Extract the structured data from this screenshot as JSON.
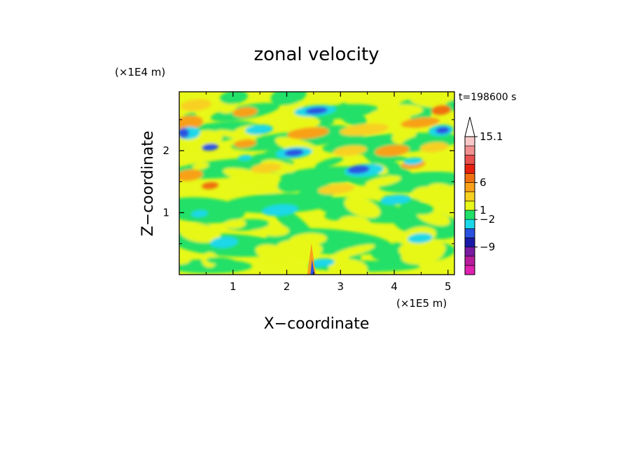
{
  "chart_data": {
    "type": "heatmap",
    "title": "zonal velocity",
    "xlabel": "X−coordinate",
    "ylabel": "Z−coordinate",
    "x_scale_label": "(×1E5 m)",
    "y_scale_label": "(×1E4 m)",
    "time_label": "t=198600 s",
    "xlim": [
      0,
      5.12
    ],
    "ylim": [
      0,
      2.95
    ],
    "xticks": [
      1,
      2,
      3,
      4,
      5
    ],
    "yticks": [
      1,
      2
    ],
    "colorbar": {
      "tick_labels": [
        "15.1",
        "6",
        "1",
        "−2",
        "−9"
      ],
      "levels": [
        {
          "color": "#e020b0"
        },
        {
          "color": "#b81c9c"
        },
        {
          "color": "#7a1aa0"
        },
        {
          "color": "#1a1aa8"
        },
        {
          "color": "#2a52e0"
        },
        {
          "color": "#1ad8e8"
        },
        {
          "color": "#20e068"
        },
        {
          "color": "#e8f818"
        },
        {
          "color": "#f8d020"
        },
        {
          "color": "#f8a018"
        },
        {
          "color": "#f07010"
        },
        {
          "color": "#e82010"
        },
        {
          "color": "#e85050"
        },
        {
          "color": "#f09090"
        },
        {
          "color": "#f8c8c8"
        }
      ]
    }
  }
}
